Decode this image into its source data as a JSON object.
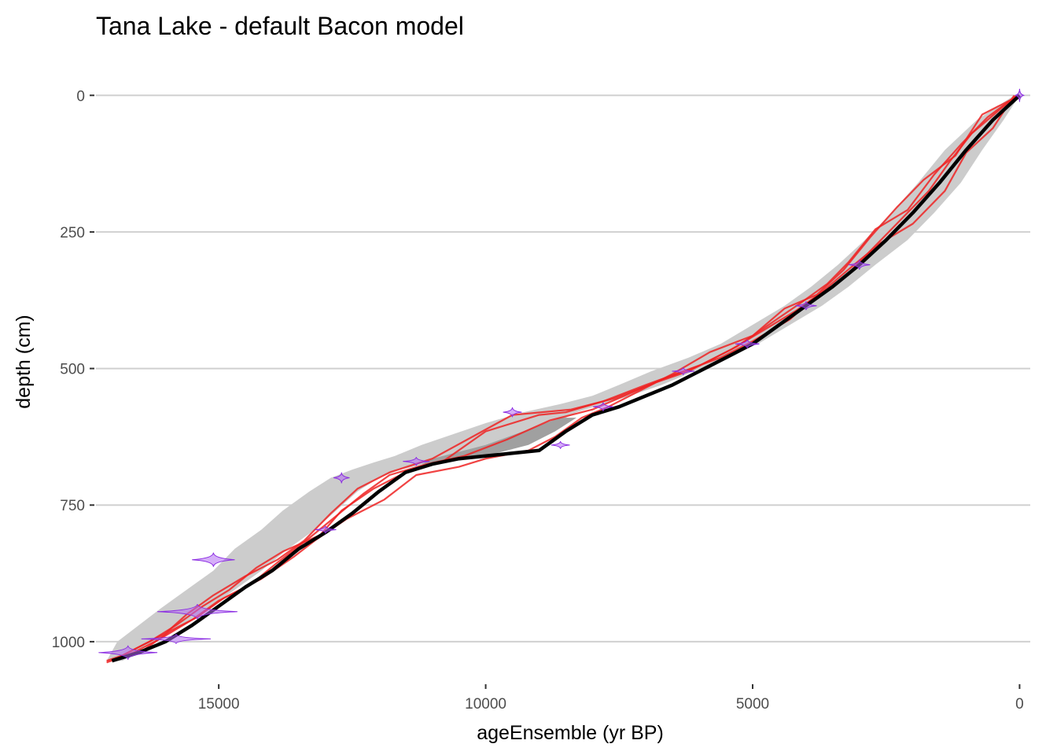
{
  "chart_data": {
    "type": "line",
    "title": "Tana Lake - default Bacon model",
    "xlabel": "ageEnsemble (yr BP)",
    "ylabel": "depth (cm)",
    "x_reversed": true,
    "y_reversed": true,
    "xlim": [
      17300,
      -200
    ],
    "ylim": [
      -45,
      1075
    ],
    "x_ticks": [
      15000,
      10000,
      5000,
      0
    ],
    "y_ticks": [
      0,
      250,
      500,
      750,
      1000
    ],
    "grid": "horizontal-major",
    "legend": "none",
    "colors": {
      "median": "#000000",
      "outer_band": "#cccccc",
      "inner_band": "#a0a0a0",
      "ensemble": "#ee2222",
      "dates": "#b36cf2",
      "dates_outline": "#8a2be2"
    },
    "median": {
      "x": [
        0,
        500,
        1000,
        1500,
        2000,
        2500,
        3000,
        3500,
        4000,
        4500,
        5000,
        5500,
        6000,
        6500,
        7000,
        7500,
        8000,
        8500,
        9000,
        9500,
        10000,
        10500,
        11000,
        11500,
        12000,
        12500,
        13000,
        13500,
        14000,
        14500,
        15000,
        15500,
        16000,
        16500,
        17000
      ],
      "y": [
        0,
        45,
        100,
        160,
        215,
        265,
        310,
        350,
        385,
        420,
        455,
        480,
        505,
        530,
        550,
        570,
        585,
        615,
        650,
        655,
        660,
        665,
        675,
        690,
        725,
        765,
        800,
        830,
        870,
        900,
        935,
        970,
        1000,
        1020,
        1035
      ]
    },
    "band_outer": {
      "x_young": [
        0,
        300,
        700,
        1100,
        1600,
        2100,
        2700,
        3200,
        3700,
        4300,
        4900,
        5500,
        6100,
        6700,
        7300,
        7800,
        8300,
        8700,
        9200,
        9800,
        10400,
        11000,
        11600,
        12000,
        12400,
        12800,
        13200,
        13700,
        14200,
        14700,
        15200,
        15700,
        16200,
        16800
      ],
      "x_old": [
        100,
        800,
        1400,
        1900,
        2400,
        2900,
        3400,
        3900,
        4400,
        5000,
        5600,
        6200,
        6900,
        7500,
        8000,
        8600,
        9300,
        10000,
        10600,
        11200,
        11700,
        12100,
        12500,
        12900,
        13300,
        13800,
        14200,
        14700,
        15100,
        15600,
        16100,
        16500,
        16900,
        17100
      ],
      "y": [
        0,
        45,
        100,
        160,
        215,
        265,
        310,
        350,
        385,
        420,
        455,
        480,
        505,
        530,
        550,
        565,
        580,
        600,
        620,
        640,
        660,
        672,
        685,
        700,
        725,
        760,
        795,
        830,
        870,
        905,
        940,
        970,
        1000,
        1035
      ]
    },
    "band_inner": {
      "x_young": [
        8300,
        8700,
        9200,
        9800,
        10400,
        11000
      ],
      "x_old": [
        8600,
        9300,
        10000,
        10600,
        11000,
        11200
      ],
      "y": [
        590,
        615,
        640,
        655,
        665,
        675
      ]
    },
    "ensemble": [
      {
        "x": [
          0,
          300,
          900,
          1300,
          1700,
          2300,
          2900,
          3300,
          3900,
          4300,
          5000,
          5600,
          6300,
          7000,
          7800,
          8500,
          9000,
          10000,
          10800,
          11500,
          12100,
          12700,
          13100,
          13800,
          14300,
          14800,
          15300,
          15800,
          16300,
          16800,
          17100
        ],
        "y": [
          0,
          20,
          70,
          120,
          175,
          235,
          295,
          335,
          375,
          410,
          450,
          480,
          505,
          530,
          560,
          580,
          585,
          615,
          670,
          690,
          720,
          760,
          805,
          835,
          865,
          905,
          935,
          970,
          1000,
          1025,
          1035
        ]
      },
      {
        "x": [
          100,
          500,
          1000,
          1400,
          2000,
          2600,
          3100,
          3700,
          4200,
          4800,
          5400,
          6200,
          6800,
          7600,
          8400,
          9500,
          11000,
          11800,
          12400,
          12900,
          13400,
          13900,
          14500,
          15100,
          15600,
          16000,
          16500,
          17000
        ],
        "y": [
          0,
          60,
          105,
          175,
          235,
          270,
          310,
          360,
          395,
          430,
          465,
          505,
          525,
          555,
          575,
          585,
          665,
          690,
          720,
          765,
          815,
          850,
          880,
          915,
          950,
          985,
          1010,
          1035
        ]
      },
      {
        "x": [
          0,
          700,
          1200,
          1800,
          2300,
          2800,
          3300,
          3800,
          4400,
          5000,
          5800,
          6500,
          7100,
          7700,
          8200,
          8700,
          9200,
          10000,
          10500,
          11300,
          11900,
          12600,
          13200,
          13600,
          14200,
          14900,
          15400,
          15900,
          16400,
          17000
        ],
        "y": [
          0,
          35,
          110,
          155,
          205,
          260,
          320,
          365,
          390,
          440,
          470,
          510,
          540,
          570,
          590,
          625,
          650,
          665,
          680,
          695,
          740,
          775,
          815,
          845,
          885,
          920,
          955,
          980,
          1015,
          1035
        ]
      },
      {
        "x": [
          50,
          600,
          1100,
          1600,
          2100,
          2700,
          3200,
          3600,
          4100,
          4700,
          5300,
          6000,
          6700,
          7400,
          8000,
          8800,
          9600,
          10400,
          11100,
          11800,
          12300,
          12800,
          13300,
          13900,
          14400,
          15000,
          15500,
          16100,
          16600,
          17100
        ],
        "y": [
          0,
          40,
          90,
          145,
          210,
          245,
          305,
          345,
          380,
          420,
          460,
          495,
          520,
          550,
          575,
          595,
          630,
          660,
          675,
          695,
          730,
          770,
          810,
          855,
          895,
          925,
          960,
          995,
          1020,
          1038
        ]
      }
    ],
    "dates": [
      {
        "age": 0,
        "depth": 0,
        "width": 150,
        "height": 24
      },
      {
        "age": 3000,
        "depth": 310,
        "width": 400,
        "height": 18
      },
      {
        "age": 4000,
        "depth": 385,
        "width": 400,
        "height": 16
      },
      {
        "age": 5100,
        "depth": 455,
        "width": 450,
        "height": 16
      },
      {
        "age": 6300,
        "depth": 505,
        "width": 420,
        "height": 14
      },
      {
        "age": 7800,
        "depth": 570,
        "width": 380,
        "height": 16
      },
      {
        "age": 8600,
        "depth": 640,
        "width": 350,
        "height": 14
      },
      {
        "age": 9500,
        "depth": 580,
        "width": 350,
        "height": 18
      },
      {
        "age": 11300,
        "depth": 670,
        "width": 500,
        "height": 16
      },
      {
        "age": 12700,
        "depth": 700,
        "width": 300,
        "height": 20
      },
      {
        "age": 13000,
        "depth": 795,
        "width": 400,
        "height": 14
      },
      {
        "age": 15100,
        "depth": 850,
        "width": 800,
        "height": 26
      },
      {
        "age": 15400,
        "depth": 945,
        "width": 1500,
        "height": 28
      },
      {
        "age": 15800,
        "depth": 995,
        "width": 1300,
        "height": 18
      },
      {
        "age": 16700,
        "depth": 1020,
        "width": 1100,
        "height": 26
      }
    ]
  }
}
